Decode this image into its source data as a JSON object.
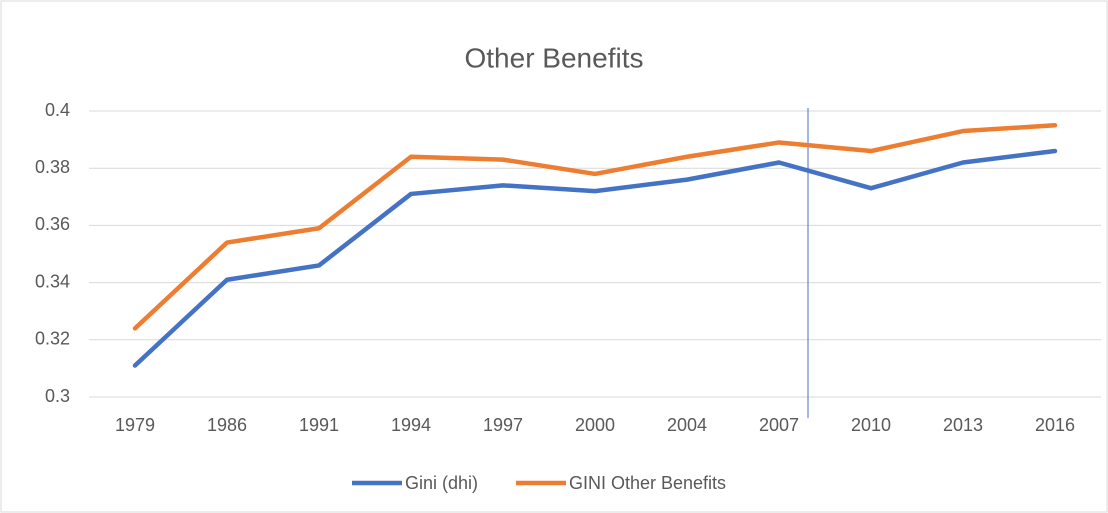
{
  "chart_data": {
    "type": "line",
    "title": "Other Benefits",
    "categories": [
      "1979",
      "1986",
      "1991",
      "1994",
      "1997",
      "2000",
      "2004",
      "2007",
      "2010",
      "2013",
      "2016"
    ],
    "series": [
      {
        "name": "Gini (dhi)",
        "color": "#4472c4",
        "values": [
          0.311,
          0.341,
          0.346,
          0.371,
          0.374,
          0.372,
          0.376,
          0.382,
          0.373,
          0.382,
          0.386
        ]
      },
      {
        "name": "GINI Other Benefits",
        "color": "#ed7d31",
        "values": [
          0.324,
          0.354,
          0.359,
          0.384,
          0.383,
          0.378,
          0.384,
          0.389,
          0.386,
          0.393,
          0.395
        ]
      }
    ],
    "ylim": [
      0.3,
      0.4
    ],
    "yticks": [
      0.3,
      0.32,
      0.34,
      0.36,
      0.38,
      0.4
    ],
    "grid": true,
    "legend": "bottom"
  }
}
